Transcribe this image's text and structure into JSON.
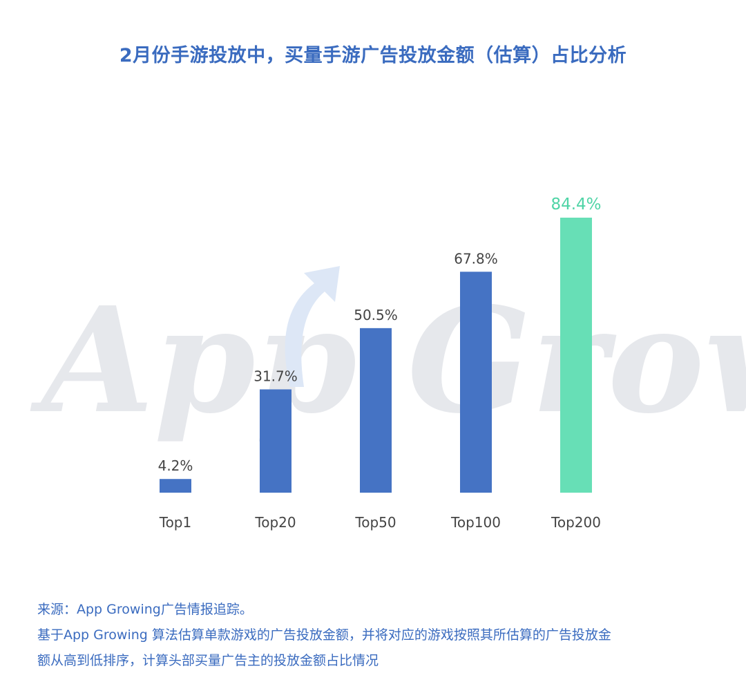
{
  "title": "2月份手游投放中，买量手游广告投放金额（估算）占比分析",
  "watermark": "App Growing",
  "colors": {
    "bar": "#4573c4",
    "highlight": "#67dfb6",
    "label": "#444444",
    "highlight_label": "#4fd4a6",
    "title": "#3a6bbf",
    "footer": "#3a6bbf",
    "watermark": "#e6e8ec"
  },
  "chart_data": {
    "type": "bar",
    "title": "2月份手游投放中，买量手游广告投放金额（估算）占比分析",
    "categories": [
      "Top1",
      "Top20",
      "Top50",
      "Top100",
      "Top200"
    ],
    "values": [
      4.2,
      31.7,
      50.5,
      67.8,
      84.4
    ],
    "value_labels": [
      "4.2%",
      "31.7%",
      "50.5%",
      "67.8%",
      "84.4%"
    ],
    "highlight_index": 4,
    "unit": "%",
    "ylim": [
      0,
      100
    ],
    "grid": false,
    "legend": "none"
  },
  "footer": {
    "source": "来源：App Growing广告情报追踪。",
    "note_line1": "基于App Growing 算法估算单款游戏的广告投放金额，并将对应的游戏按照其所估算的广告投放金",
    "note_line2": "额从高到低排序，计算头部买量广告主的投放金额占比情况"
  }
}
